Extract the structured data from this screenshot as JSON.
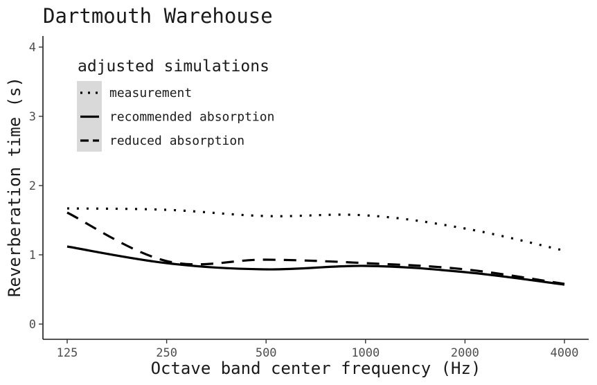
{
  "chart_data": {
    "type": "line",
    "title": "Dartmouth Warehouse",
    "xlabel": "Octave band center frequency (Hz)",
    "ylabel": "Reverberation time (s)",
    "x_scale": "log2",
    "x": [
      125,
      250,
      500,
      1000,
      2000,
      4000
    ],
    "x_tick_labels": [
      "125",
      "250",
      "500",
      "1000",
      "2000",
      "4000"
    ],
    "ylim": [
      0,
      4
    ],
    "y_ticks": [
      0,
      1,
      2,
      3,
      4
    ],
    "y_tick_labels": [
      "0",
      "1",
      "2",
      "3",
      "4"
    ],
    "grid": false,
    "legend": {
      "title": "adjusted simulations",
      "placement": "top-left"
    },
    "series": [
      {
        "name": "measurement",
        "line_style": "dotted",
        "values": [
          1.67,
          1.65,
          1.56,
          1.57,
          1.38,
          1.06
        ]
      },
      {
        "name": "recommended absorption",
        "line_style": "solid",
        "values": [
          1.12,
          0.88,
          0.79,
          0.84,
          0.75,
          0.57
        ]
      },
      {
        "name": "reduced absorption",
        "line_style": "dashed",
        "values": [
          1.61,
          0.91,
          0.93,
          0.88,
          0.79,
          0.58
        ]
      }
    ]
  }
}
